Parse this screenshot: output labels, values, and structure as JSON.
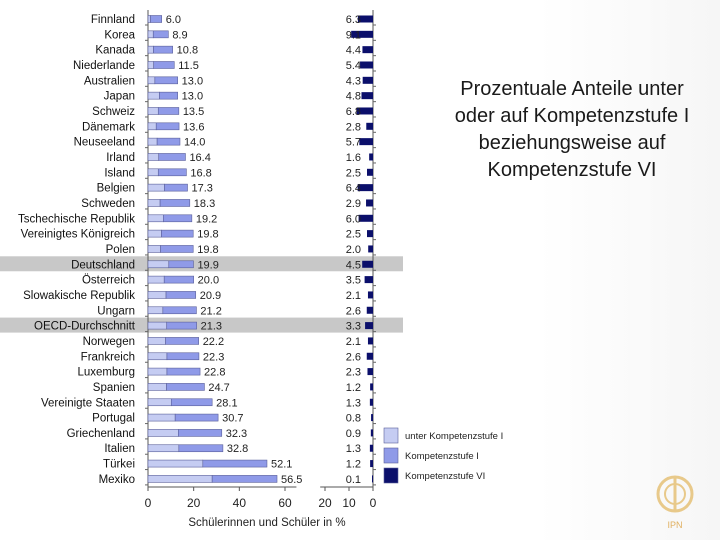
{
  "slide_title_lines": [
    "Prozentuale Anteile unter",
    "oder auf Kompetenzstufe I",
    "beziehungsweise auf",
    "Kompetenzstufe VI"
  ],
  "logo_text": "IPN",
  "colors": {
    "below_level_1": "#c5ccf2",
    "level_1": "#8f9ae8",
    "level_6": "#0b0f6b",
    "highlight_band": "#c8c8c8"
  },
  "chart_data": {
    "type": "bar",
    "xlabel": "Schülerinnen und Schüler in %",
    "left_axis_ticks": [
      0,
      20,
      40,
      60
    ],
    "left_xlim": [
      0,
      60
    ],
    "right_axis_ticks": [
      20,
      10,
      0
    ],
    "right_xlim": [
      20,
      0
    ],
    "highlighted_countries": [
      "Deutschland",
      "OECD-Durchschnitt"
    ],
    "legend": [
      {
        "label": "unter Kompetenzstufe I",
        "color": "#c5ccf2"
      },
      {
        "label": "Kompetenzstufe I",
        "color": "#8f9ae8"
      },
      {
        "label": "Kompetenzstufe VI",
        "color": "#0b0f6b"
      }
    ],
    "legend_position": "bottom-right",
    "categories": [
      "Finnland",
      "Korea",
      "Kanada",
      "Niederlande",
      "Australien",
      "Japan",
      "Schweiz",
      "Dänemark",
      "Neuseeland",
      "Irland",
      "Island",
      "Belgien",
      "Schweden",
      "Tschechische Republik",
      "Vereinigtes Königreich",
      "Polen",
      "Deutschland",
      "Österreich",
      "Slowakische Republik",
      "Ungarn",
      "OECD-Durchschnitt",
      "Norwegen",
      "Frankreich",
      "Luxemburg",
      "Spanien",
      "Vereinigte Staaten",
      "Portugal",
      "Griechenland",
      "Italien",
      "Türkei",
      "Mexiko"
    ],
    "series": [
      {
        "name": "unter Kompetenzstufe I",
        "values": [
          1.1,
          2.3,
          2.4,
          2.5,
          3.0,
          5.0,
          4.5,
          3.6,
          4.0,
          4.7,
          4.5,
          7.2,
          5.3,
          6.7,
          5.9,
          5.5,
          9.1,
          7.1,
          7.9,
          6.5,
          8.2,
          7.7,
          8.3,
          8.3,
          8.1,
          10.2,
          11.9,
          13.3,
          13.5,
          24.0,
          28.1
        ]
      },
      {
        "name": "Kompetenzstufe I",
        "values": [
          4.9,
          6.6,
          8.4,
          9.0,
          10.0,
          8.0,
          9.0,
          10.0,
          10.0,
          11.7,
          12.3,
          10.1,
          13.0,
          12.5,
          13.9,
          14.3,
          10.8,
          12.9,
          13.0,
          14.7,
          13.1,
          14.5,
          14.0,
          14.5,
          16.6,
          17.9,
          18.8,
          19.0,
          19.3,
          28.1,
          28.4
        ]
      },
      {
        "name": "Kompetenzstufe VI",
        "values": [
          6.3,
          9.1,
          4.4,
          5.4,
          4.3,
          4.8,
          6.8,
          2.8,
          5.7,
          1.6,
          2.5,
          6.4,
          2.9,
          6.0,
          2.5,
          2.0,
          4.5,
          3.5,
          2.1,
          2.6,
          3.3,
          2.1,
          2.6,
          2.3,
          1.2,
          1.3,
          0.8,
          0.9,
          1.3,
          1.2,
          0.1
        ]
      }
    ],
    "left_totals": [
      "6.0",
      "8.9",
      "10.8",
      "11.5",
      "13.0",
      "13.0",
      "13.5",
      "13.6",
      "14.0",
      "16.4",
      "16.8",
      "17.3",
      "18.3",
      "19.2",
      "19.8",
      "19.8",
      "19.9",
      "20.0",
      "20.9",
      "21.2",
      "21.3",
      "22.2",
      "22.3",
      "22.8",
      "24.7",
      "28.1",
      "30.7",
      "32.3",
      "32.8",
      "52.1",
      "56.5"
    ],
    "right_labels": [
      "6.3",
      "9.1",
      "4.4",
      "5.4",
      "4.3",
      "4.8",
      "6.8",
      "2.8",
      "5.7",
      "1.6",
      "2.5",
      "6.4",
      "2.9",
      "6.0",
      "2.5",
      "2.0",
      "4.5",
      "3.5",
      "2.1",
      "2.6",
      "3.3",
      "2.1",
      "2.6",
      "2.3",
      "1.2",
      "1.3",
      "0.8",
      "0.9",
      "1.3",
      "1.2",
      "0.1"
    ]
  }
}
